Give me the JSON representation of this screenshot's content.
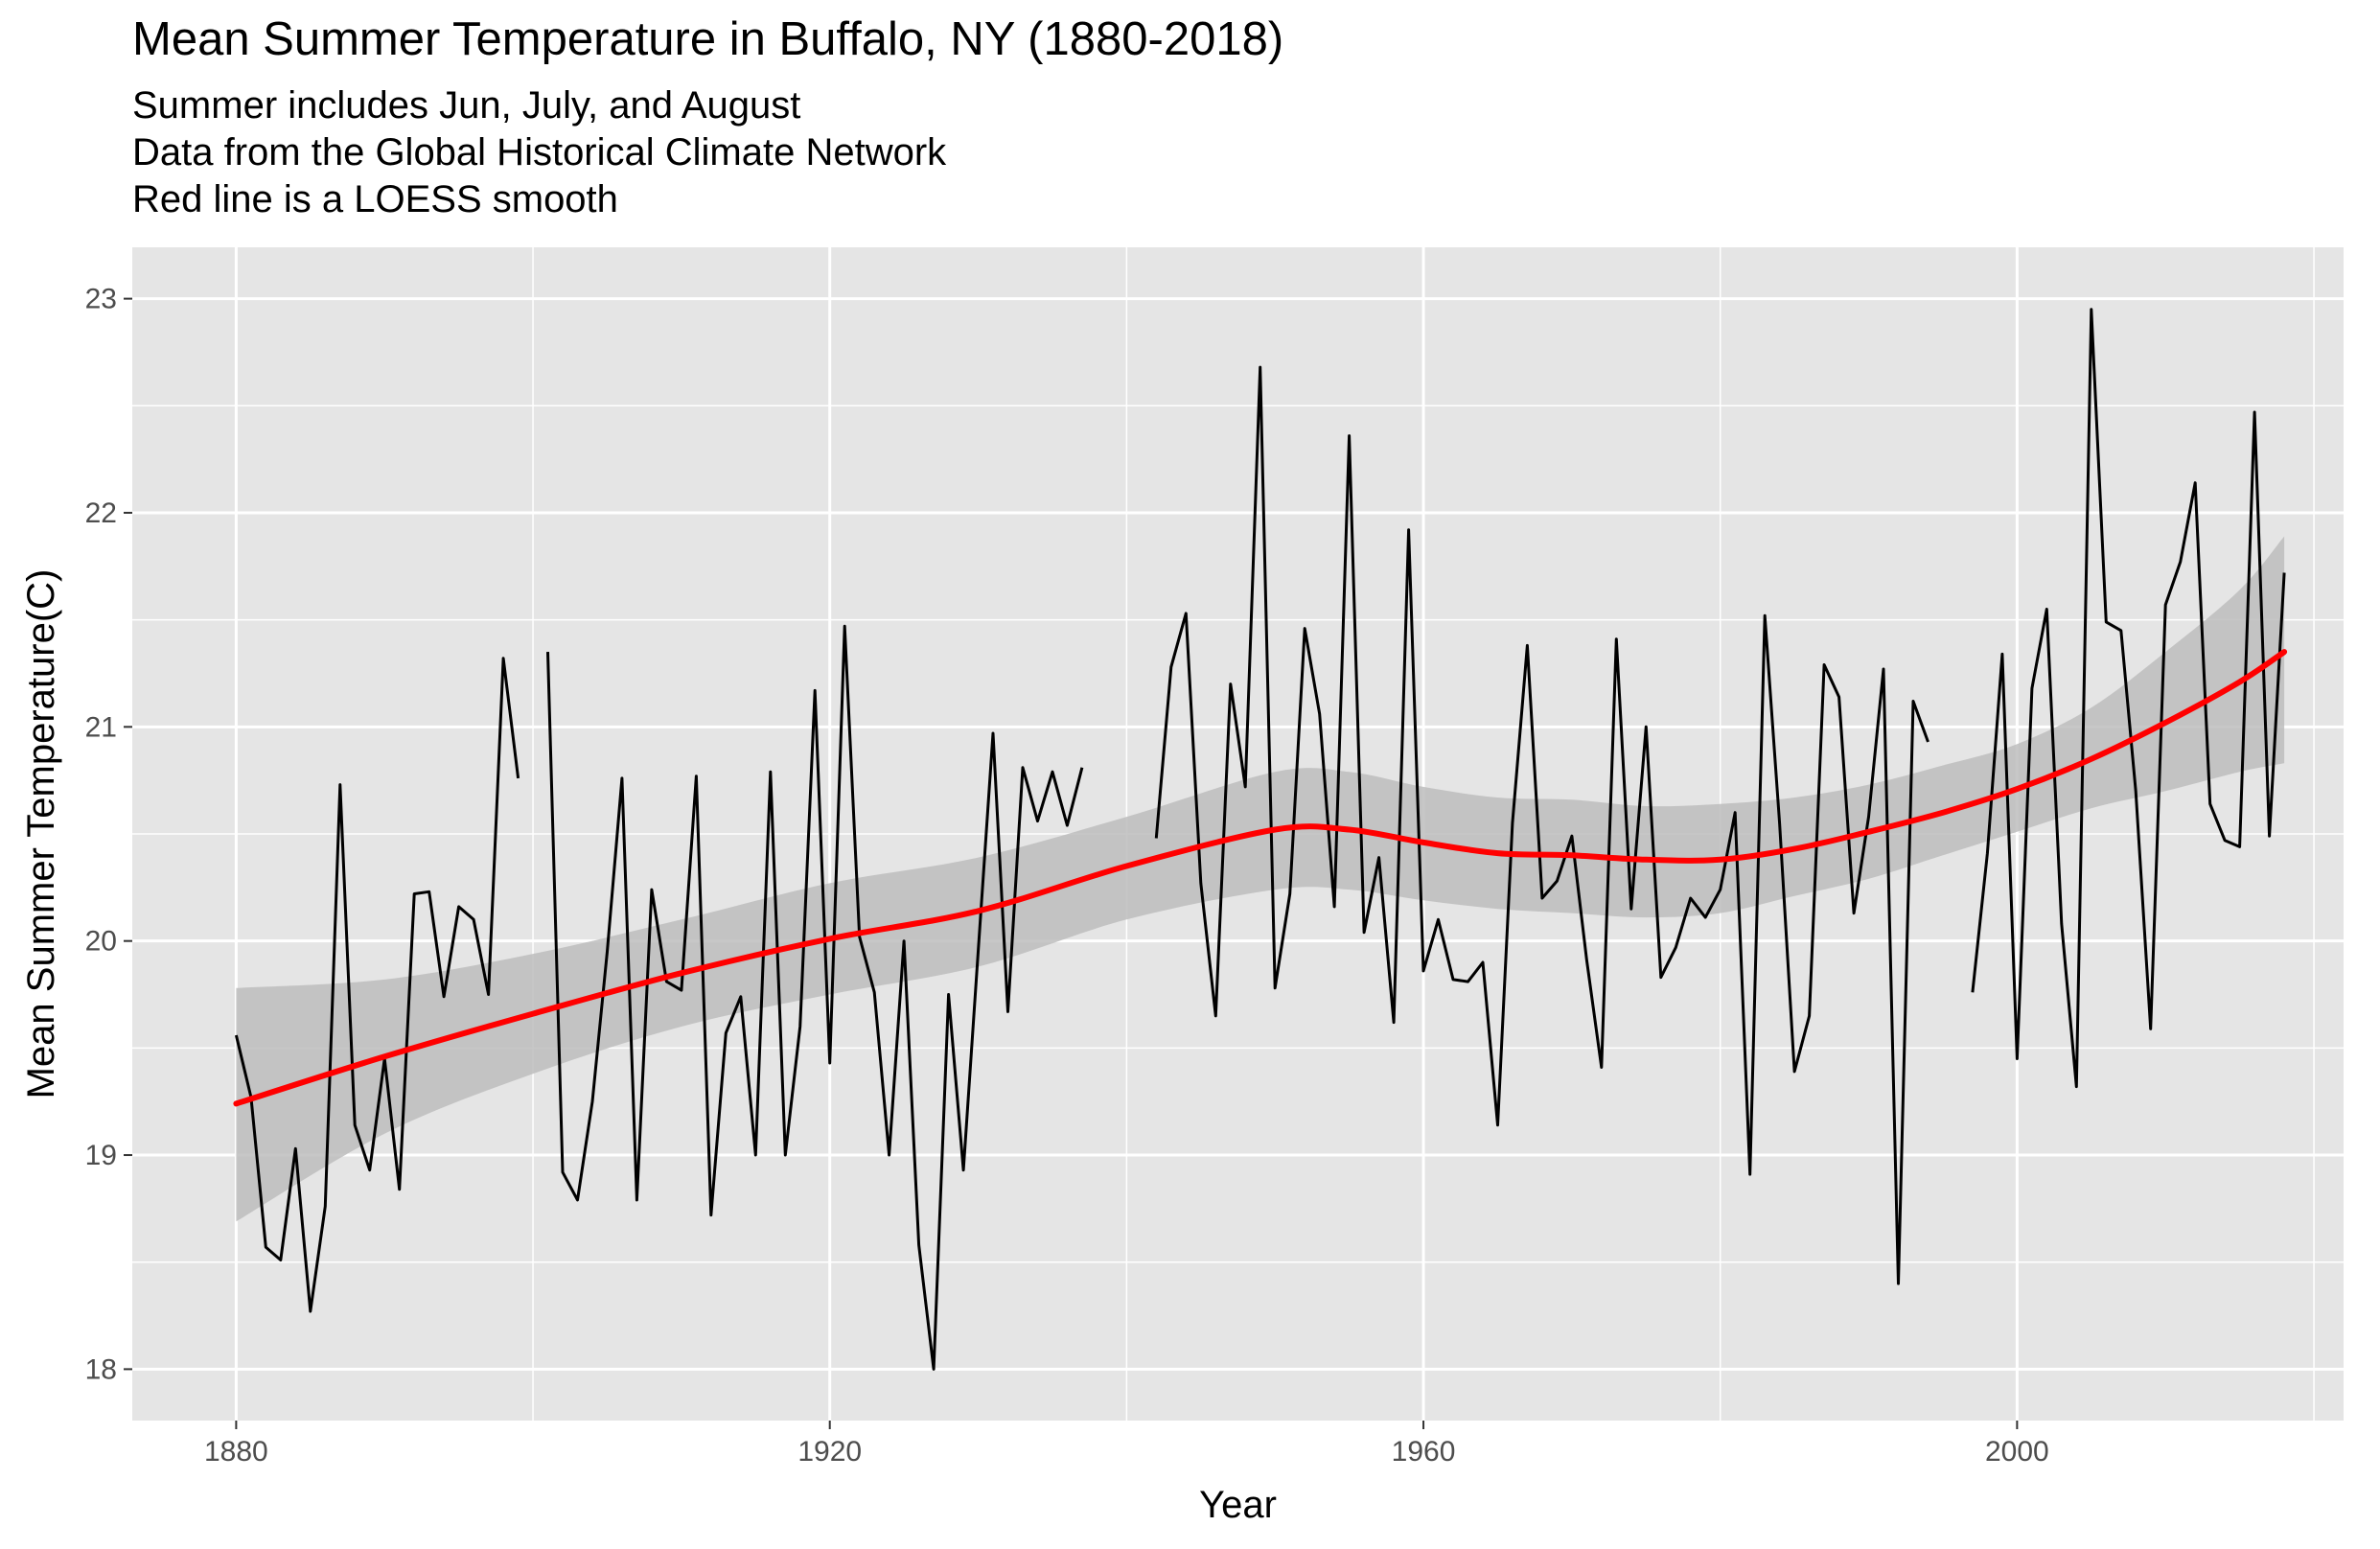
{
  "chart_data": {
    "type": "line",
    "title": "Mean Summer Temperature in Buffalo, NY (1880-2018)",
    "subtitle": [
      "Summer includes Jun, July, and August",
      "Data from the Global Historical Climate Network",
      "Red line is a LOESS smooth"
    ],
    "xlabel": "Year",
    "ylabel": "Mean Summer Temperature(C)",
    "xlim": [
      1873,
      2022
    ],
    "ylim": [
      17.76,
      23.24
    ],
    "x_ticks": [
      1880,
      1920,
      1960,
      2000
    ],
    "x_tick_labels": [
      "1880",
      "1920",
      "1960",
      "2000"
    ],
    "y_ticks": [
      18,
      19,
      20,
      21,
      22,
      23
    ],
    "y_tick_labels": [
      "18",
      "19",
      "20",
      "21",
      "22",
      "23"
    ],
    "grid": true,
    "legend": "none",
    "colors": {
      "panel": "#e5e5e5",
      "grid": "#ffffff",
      "series": "#000000",
      "smooth": "#ff0000",
      "ribbon": "#bdbdbd",
      "tick_text": "#4d4d4d"
    },
    "series": [
      {
        "data": [
          [
            1880,
            19.56
          ],
          [
            1881,
            19.27
          ],
          [
            1882,
            18.57
          ],
          [
            1883,
            18.51
          ],
          [
            1884,
            19.03
          ],
          [
            1885,
            18.27
          ],
          [
            1886,
            18.76
          ],
          [
            1887,
            20.73
          ],
          [
            1888,
            19.14
          ],
          [
            1889,
            18.93
          ],
          [
            1890,
            19.45
          ],
          [
            1891,
            18.84
          ],
          [
            1892,
            20.22
          ],
          [
            1893,
            20.23
          ],
          [
            1894,
            19.74
          ],
          [
            1895,
            20.16
          ],
          [
            1896,
            20.1
          ],
          [
            1897,
            19.75
          ],
          [
            1898,
            21.32
          ],
          [
            1899,
            20.76
          ],
          [
            1901,
            21.35
          ],
          [
            1902,
            18.92
          ],
          [
            1903,
            18.79
          ],
          [
            1904,
            19.25
          ],
          [
            1905,
            19.95
          ],
          [
            1906,
            20.76
          ],
          [
            1907,
            18.79
          ],
          [
            1908,
            20.24
          ],
          [
            1909,
            19.81
          ],
          [
            1910,
            19.77
          ],
          [
            1911,
            20.77
          ],
          [
            1912,
            18.72
          ],
          [
            1913,
            19.57
          ],
          [
            1914,
            19.74
          ],
          [
            1915,
            19.0
          ],
          [
            1916,
            20.79
          ],
          [
            1917,
            19.0
          ],
          [
            1918,
            19.6
          ],
          [
            1919,
            21.17
          ],
          [
            1920,
            19.43
          ],
          [
            1921,
            21.47
          ],
          [
            1922,
            20.02
          ],
          [
            1923,
            19.76
          ],
          [
            1924,
            19.0
          ],
          [
            1925,
            20.0
          ],
          [
            1926,
            18.58
          ],
          [
            1927,
            18.0
          ],
          [
            1928,
            19.75
          ],
          [
            1929,
            18.93
          ],
          [
            1930,
            19.95
          ],
          [
            1931,
            20.97
          ],
          [
            1932,
            19.67
          ],
          [
            1933,
            20.81
          ],
          [
            1934,
            20.56
          ],
          [
            1935,
            20.79
          ],
          [
            1936,
            20.54
          ],
          [
            1937,
            20.81
          ],
          [
            1942,
            20.48
          ],
          [
            1943,
            21.28
          ],
          [
            1944,
            21.53
          ],
          [
            1945,
            20.27
          ],
          [
            1946,
            19.65
          ],
          [
            1947,
            21.2
          ],
          [
            1948,
            20.72
          ],
          [
            1949,
            22.68
          ],
          [
            1950,
            19.78
          ],
          [
            1951,
            20.22
          ],
          [
            1952,
            21.46
          ],
          [
            1953,
            21.06
          ],
          [
            1954,
            20.16
          ],
          [
            1955,
            22.36
          ],
          [
            1956,
            20.04
          ],
          [
            1957,
            20.39
          ],
          [
            1958,
            19.62
          ],
          [
            1959,
            21.92
          ],
          [
            1960,
            19.86
          ],
          [
            1961,
            20.1
          ],
          [
            1962,
            19.82
          ],
          [
            1963,
            19.81
          ],
          [
            1964,
            19.9
          ],
          [
            1965,
            19.14
          ],
          [
            1966,
            20.55
          ],
          [
            1967,
            21.38
          ],
          [
            1968,
            20.2
          ],
          [
            1969,
            20.28
          ],
          [
            1970,
            20.49
          ],
          [
            1971,
            19.91
          ],
          [
            1972,
            19.41
          ],
          [
            1973,
            21.41
          ],
          [
            1974,
            20.15
          ],
          [
            1975,
            21.0
          ],
          [
            1976,
            19.83
          ],
          [
            1977,
            19.97
          ],
          [
            1978,
            20.2
          ],
          [
            1979,
            20.11
          ],
          [
            1980,
            20.24
          ],
          [
            1981,
            20.6
          ],
          [
            1982,
            18.91
          ],
          [
            1983,
            21.52
          ],
          [
            1984,
            20.55
          ],
          [
            1985,
            19.39
          ],
          [
            1986,
            19.65
          ],
          [
            1987,
            21.29
          ],
          [
            1988,
            21.14
          ],
          [
            1989,
            20.13
          ],
          [
            1990,
            20.58
          ],
          [
            1991,
            21.27
          ],
          [
            1992,
            18.4
          ],
          [
            1993,
            21.12
          ],
          [
            1994,
            20.93
          ],
          [
            1997,
            19.76
          ],
          [
            1998,
            20.41
          ],
          [
            1999,
            21.34
          ],
          [
            2000,
            19.45
          ],
          [
            2001,
            21.18
          ],
          [
            2002,
            21.55
          ],
          [
            2003,
            20.08
          ],
          [
            2004,
            19.32
          ],
          [
            2005,
            22.95
          ],
          [
            2006,
            21.49
          ],
          [
            2007,
            21.45
          ],
          [
            2008,
            20.7
          ],
          [
            2009,
            19.59
          ],
          [
            2010,
            21.57
          ],
          [
            2011,
            21.77
          ],
          [
            2012,
            22.14
          ],
          [
            2013,
            20.64
          ],
          [
            2014,
            20.47
          ],
          [
            2015,
            20.44
          ],
          [
            2016,
            22.47
          ],
          [
            2017,
            20.49
          ],
          [
            2018,
            21.72
          ]
        ]
      }
    ],
    "smooth": {
      "x": [
        1880,
        1890,
        1900,
        1910,
        1920,
        1930,
        1940,
        1950,
        1955,
        1960,
        1965,
        1970,
        1975,
        1980,
        1985,
        1990,
        1995,
        2000,
        2005,
        2010,
        2015,
        2018
      ],
      "y": [
        19.24,
        19.46,
        19.66,
        19.85,
        20.01,
        20.14,
        20.35,
        20.52,
        20.52,
        20.46,
        20.41,
        20.4,
        20.38,
        20.38,
        20.43,
        20.51,
        20.6,
        20.71,
        20.85,
        21.02,
        21.21,
        21.35
      ],
      "lower": [
        18.69,
        19.1,
        19.38,
        19.6,
        19.75,
        19.88,
        20.1,
        20.24,
        20.24,
        20.19,
        20.15,
        20.13,
        20.11,
        20.13,
        20.21,
        20.29,
        20.4,
        20.51,
        20.62,
        20.7,
        20.79,
        20.83
      ],
      "upper": [
        19.78,
        19.82,
        19.94,
        20.1,
        20.27,
        20.39,
        20.58,
        20.79,
        20.79,
        20.72,
        20.67,
        20.66,
        20.63,
        20.64,
        20.67,
        20.73,
        20.82,
        20.92,
        21.09,
        21.35,
        21.64,
        21.89
      ]
    }
  }
}
